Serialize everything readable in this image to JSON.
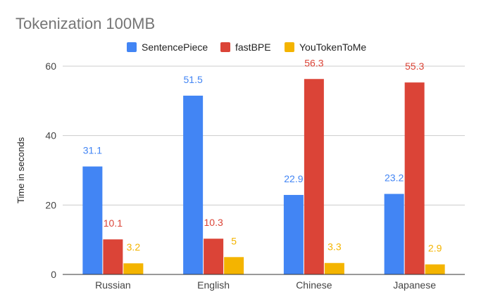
{
  "chart_data": {
    "type": "bar",
    "title": "Tokenization 100MB",
    "xlabel": "",
    "ylabel": "Time in seconds",
    "categories": [
      "Russian",
      "English",
      "Chinese",
      "Japanese"
    ],
    "ylim": [
      0,
      60
    ],
    "yticks": [
      0,
      20,
      40,
      60
    ],
    "grid": true,
    "legend_position": "top",
    "series": [
      {
        "name": "SentencePiece",
        "color": "#4285f4",
        "values": [
          31.1,
          51.5,
          22.9,
          23.2
        ],
        "labels": [
          "31.1",
          "51.5",
          "22.9",
          "23.2"
        ]
      },
      {
        "name": "fastBPE",
        "color": "#db4437",
        "values": [
          10.1,
          10.3,
          56.3,
          55.3
        ],
        "labels": [
          "10.1",
          "10.3",
          "56.3",
          "55.3"
        ]
      },
      {
        "name": "YouTokenToMe",
        "color": "#f4b400",
        "values": [
          3.2,
          5,
          3.3,
          2.9
        ],
        "labels": [
          "3.2",
          "5",
          "3.3",
          "2.9"
        ]
      }
    ]
  }
}
